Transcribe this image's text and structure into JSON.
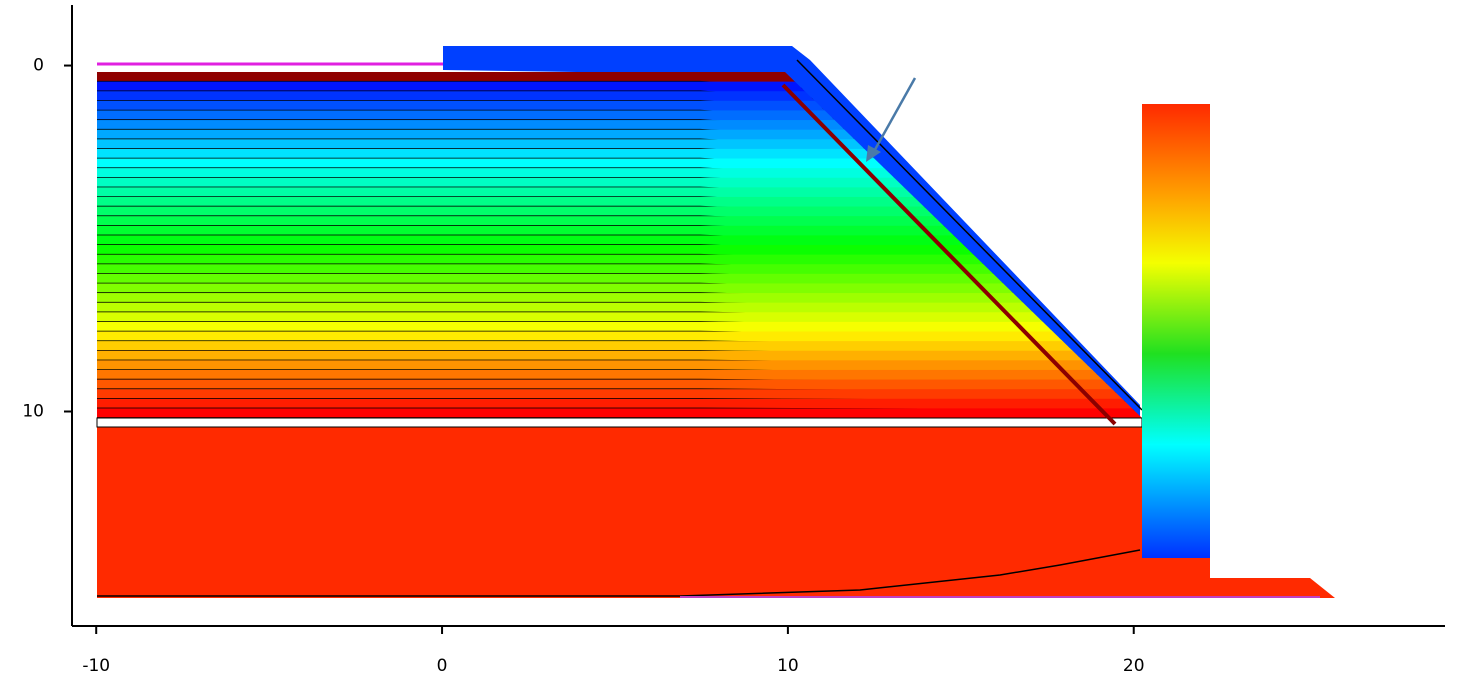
{
  "chart_data": {
    "type": "contour",
    "xlim": [
      -10.7,
      29
    ],
    "xticks": [
      -10,
      0,
      10,
      20
    ],
    "ylim": [
      -1.75,
      16.2
    ],
    "yticks": [
      0,
      10
    ]
  }
}
